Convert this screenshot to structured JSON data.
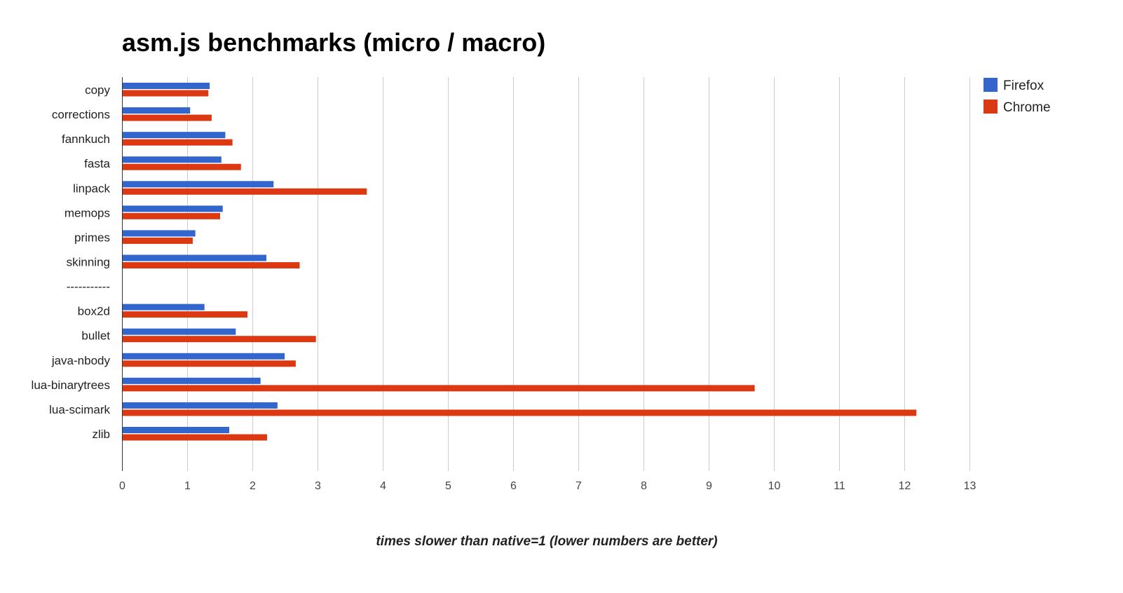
{
  "chart_data": {
    "type": "bar",
    "orientation": "horizontal",
    "title": "asm.js benchmarks (micro / macro)",
    "xlabel": "times slower than native=1 (lower numbers are better)",
    "ylabel": "",
    "xlim": [
      0,
      13
    ],
    "x_ticks": [
      "0",
      "1",
      "2",
      "3",
      "4",
      "5",
      "6",
      "7",
      "8",
      "9",
      "10",
      "11",
      "12",
      "13"
    ],
    "grid": "vertical",
    "legend_position": "top-right",
    "categories": [
      "copy",
      "corrections",
      "fannkuch",
      "fasta",
      "linpack",
      "memops",
      "primes",
      "skinning",
      "-----------",
      "box2d",
      "bullet",
      "java-nbody",
      "lua-binarytrees",
      "lua-scimark",
      "zlib"
    ],
    "series": [
      {
        "name": "Firefox",
        "color": "#3366cc",
        "values": [
          1.34,
          1.04,
          1.58,
          1.52,
          2.32,
          1.54,
          1.12,
          2.21,
          null,
          1.26,
          1.74,
          2.49,
          2.12,
          2.38,
          1.64
        ]
      },
      {
        "name": "Chrome",
        "color": "#dc3912",
        "values": [
          1.32,
          1.37,
          1.69,
          1.82,
          3.75,
          1.5,
          1.08,
          2.72,
          null,
          1.92,
          2.97,
          2.66,
          9.7,
          12.18,
          2.22
        ]
      }
    ]
  }
}
